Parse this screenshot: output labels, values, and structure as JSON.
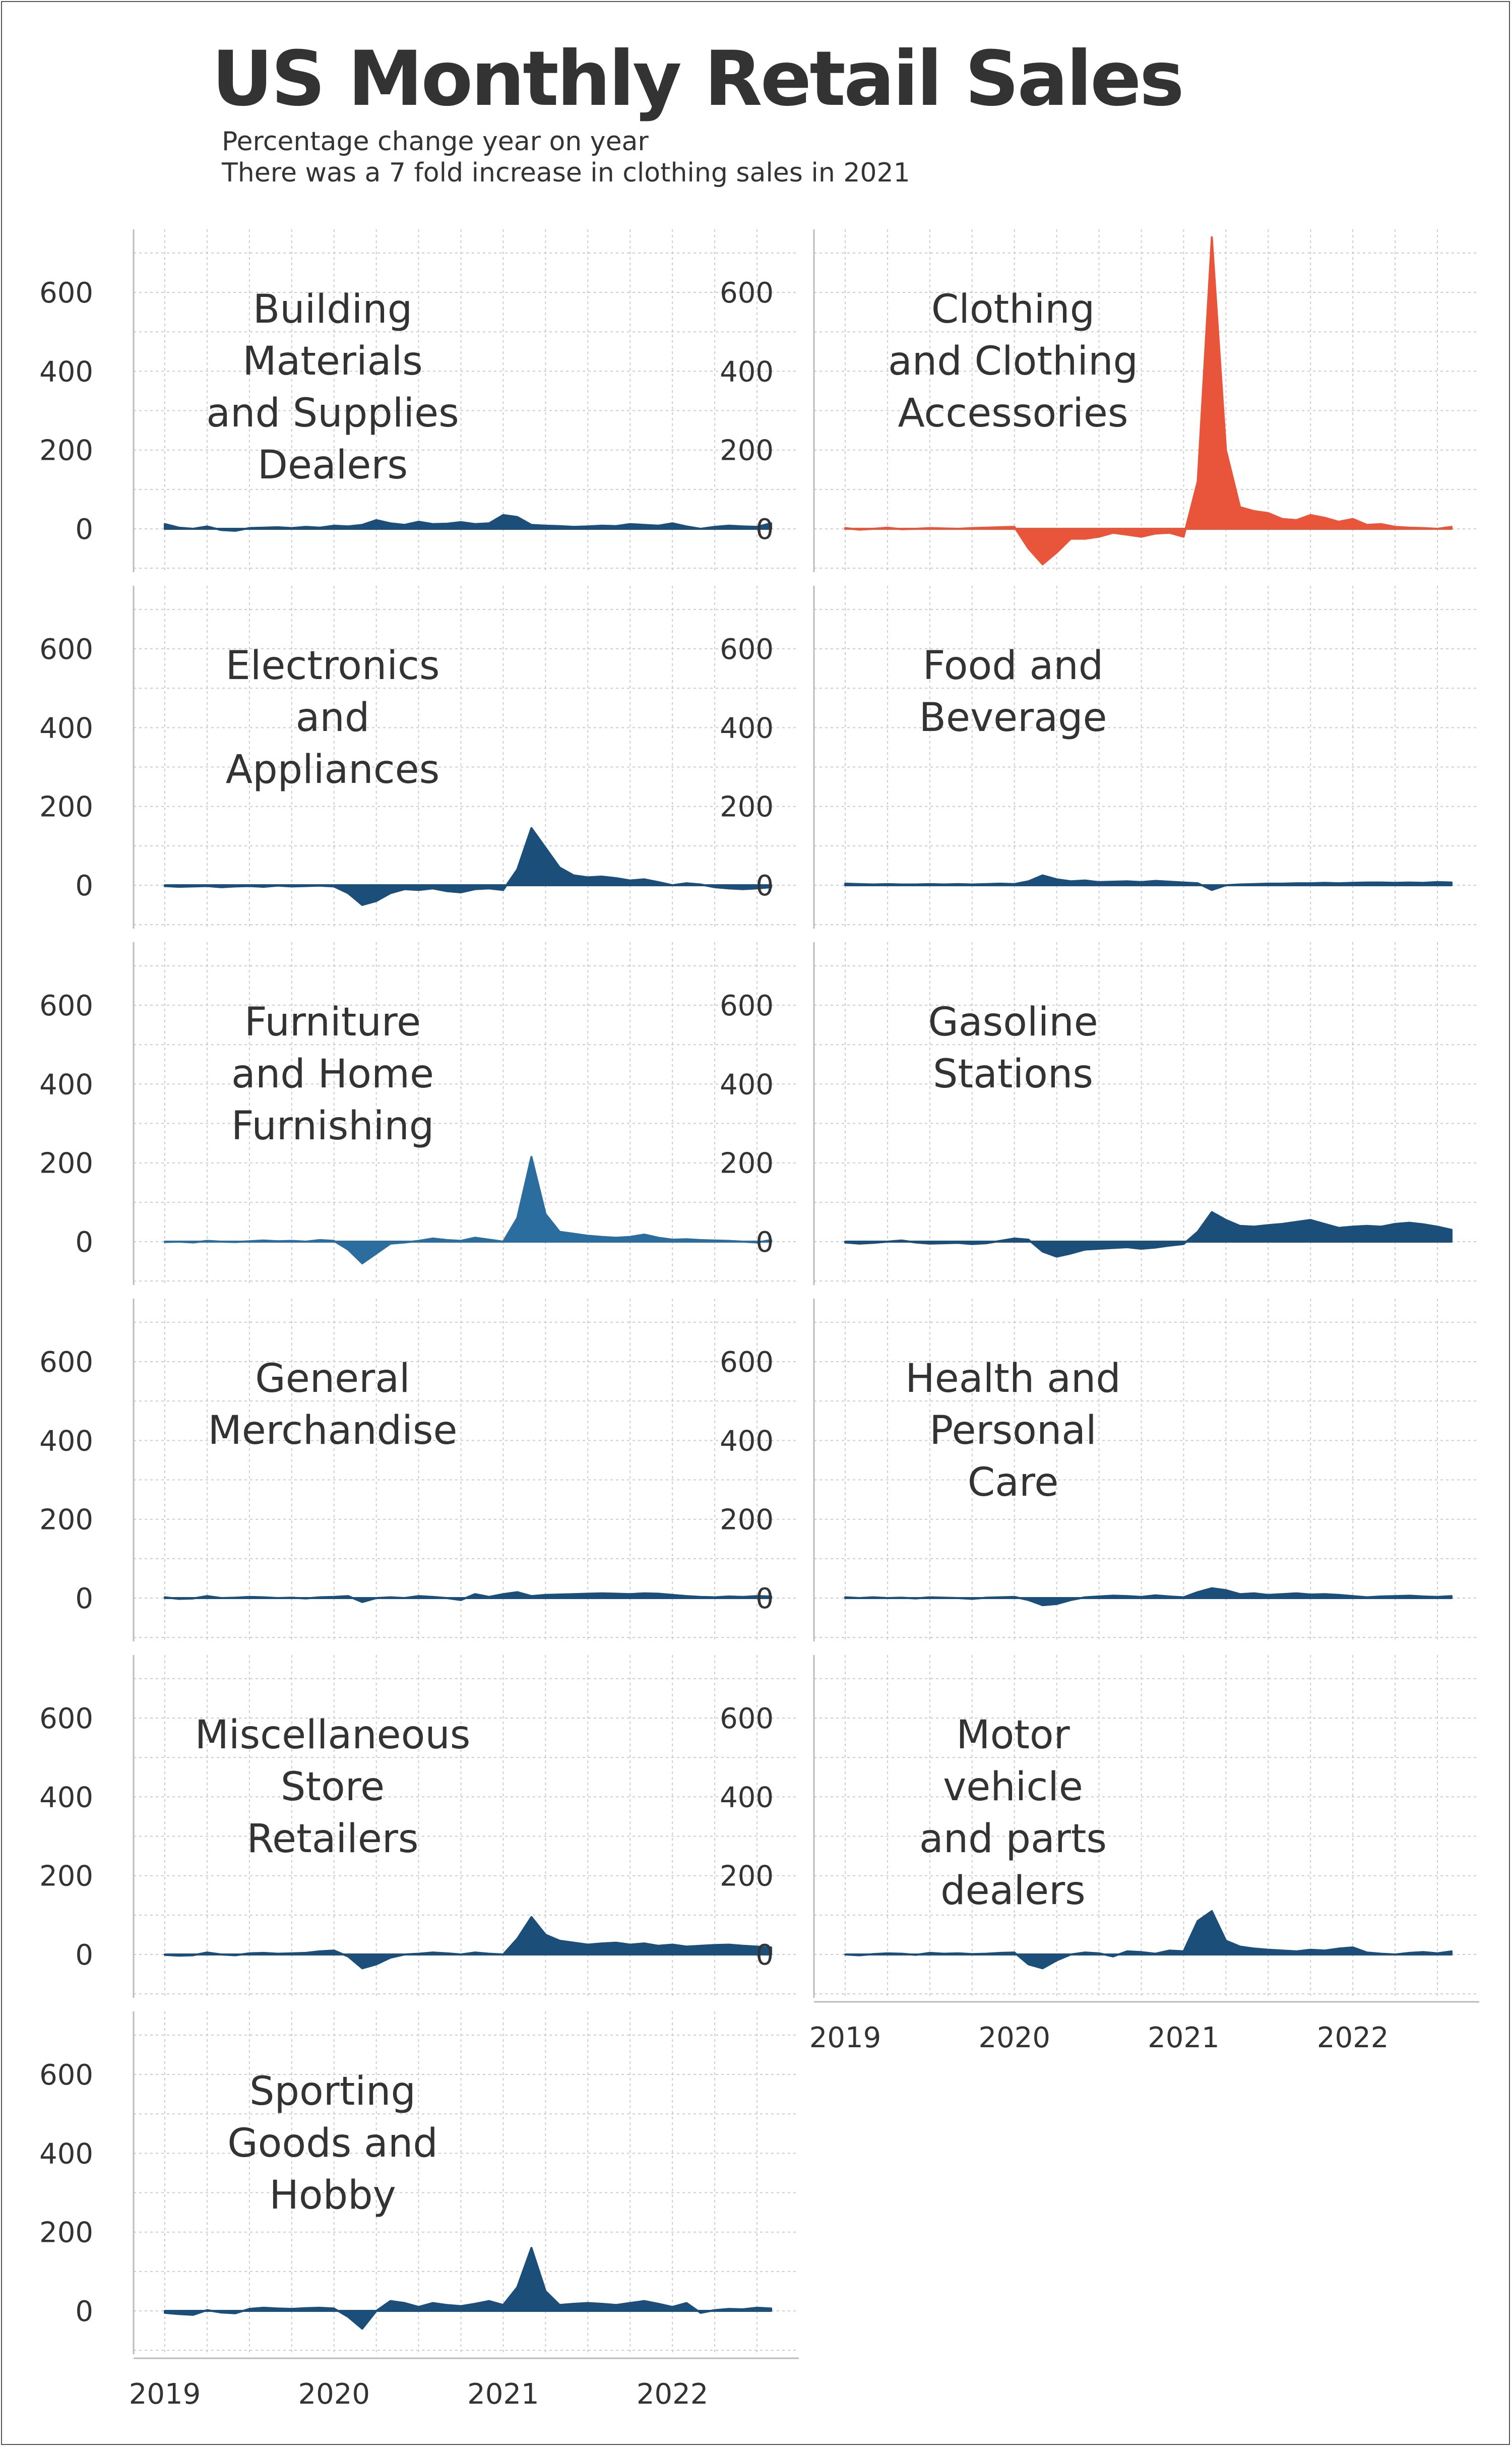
{
  "title": "US Monthly Retail Sales",
  "subtitle_lines": [
    "Percentage change year on year",
    "There was a 7 fold increase in clothing sales in 2021"
  ],
  "colors": {
    "default": "#1b4f7a",
    "highlight": "#e9553a",
    "furniture": "#2a6d9e",
    "text": "#333333",
    "grid": "#cccccc"
  },
  "chart_data": {
    "type": "area",
    "x_start": "2019-01",
    "x_end": "2022-08",
    "frequency": "monthly",
    "x_ticks": [
      "2019",
      "2020",
      "2021",
      "2022"
    ],
    "y_ticks": [
      "0",
      "200",
      "400",
      "600"
    ],
    "ylim": [
      -110,
      760
    ],
    "grid": true,
    "highlight_series": "Clothing and Clothing Accessories",
    "series": [
      {
        "name": "Building Materials and Supplies Dealers",
        "label_lines": [
          "Building",
          "Materials",
          "and Supplies",
          "Dealers"
        ],
        "values": [
          12,
          3,
          0,
          6,
          -3,
          -5,
          2,
          3,
          4,
          2,
          5,
          3,
          8,
          6,
          10,
          22,
          14,
          10,
          18,
          12,
          13,
          17,
          12,
          14,
          35,
          30,
          10,
          8,
          7,
          5,
          6,
          8,
          7,
          12,
          10,
          8,
          14,
          6,
          0,
          5,
          8,
          6,
          5,
          14
        ]
      },
      {
        "name": "Clothing and Clothing Accessories",
        "label_lines": [
          "Clothing",
          "and Clothing",
          "Accessories"
        ],
        "values": [
          2,
          -2,
          0,
          3,
          -1,
          0,
          2,
          1,
          0,
          2,
          3,
          4,
          5,
          -50,
          -90,
          -60,
          -25,
          -25,
          -20,
          -10,
          -15,
          -20,
          -12,
          -10,
          -20,
          120,
          740,
          200,
          55,
          45,
          40,
          25,
          22,
          35,
          28,
          18,
          25,
          10,
          12,
          5,
          3,
          2,
          0,
          5
        ]
      },
      {
        "name": "Electronics and Appliances",
        "label_lines": [
          "Electronics",
          "and",
          "Appliances"
        ],
        "values": [
          -2,
          -4,
          -3,
          -2,
          -5,
          -3,
          -2,
          -4,
          -1,
          -3,
          -2,
          -1,
          -3,
          -20,
          -50,
          -40,
          -20,
          -10,
          -12,
          -8,
          -15,
          -18,
          -10,
          -8,
          -12,
          40,
          145,
          95,
          45,
          25,
          20,
          22,
          18,
          12,
          15,
          8,
          0,
          5,
          2,
          -5,
          -8,
          -10,
          -8,
          -5
        ]
      },
      {
        "name": "Food and Beverage",
        "label_lines": [
          "Food and",
          "Beverage"
        ],
        "values": [
          4,
          3,
          2,
          3,
          2,
          2,
          3,
          2,
          3,
          2,
          3,
          4,
          3,
          10,
          25,
          15,
          10,
          12,
          8,
          9,
          10,
          8,
          11,
          9,
          7,
          5,
          -12,
          0,
          2,
          3,
          4,
          4,
          5,
          5,
          6,
          5,
          6,
          7,
          7,
          6,
          7,
          6,
          8,
          7
        ]
      },
      {
        "name": "Furniture and Home Furnishing",
        "label_lines": [
          "Furniture",
          "and Home",
          "Furnishing"
        ],
        "values": [
          -1,
          0,
          -2,
          2,
          0,
          -1,
          1,
          3,
          1,
          2,
          0,
          4,
          2,
          -20,
          -55,
          -30,
          -5,
          -2,
          2,
          8,
          4,
          2,
          10,
          5,
          0,
          60,
          215,
          70,
          25,
          20,
          15,
          12,
          10,
          12,
          18,
          10,
          5,
          6,
          4,
          3,
          2,
          0,
          -2,
          4
        ]
      },
      {
        "name": "Gasoline Stations",
        "label_lines": [
          "Gasoline",
          "Stations"
        ],
        "values": [
          -2,
          -5,
          -3,
          0,
          3,
          -2,
          -5,
          -4,
          -3,
          -6,
          -4,
          2,
          8,
          5,
          -25,
          -38,
          -30,
          -20,
          -18,
          -16,
          -14,
          -18,
          -15,
          -10,
          -6,
          25,
          75,
          55,
          40,
          38,
          42,
          45,
          50,
          55,
          45,
          35,
          38,
          40,
          38,
          45,
          48,
          44,
          38,
          30
        ]
      },
      {
        "name": "General Merchandise",
        "label_lines": [
          "General",
          "Merchandise"
        ],
        "values": [
          2,
          -2,
          -1,
          5,
          0,
          1,
          3,
          2,
          0,
          1,
          -1,
          2,
          3,
          5,
          -10,
          0,
          2,
          0,
          5,
          3,
          0,
          -5,
          10,
          3,
          10,
          15,
          5,
          8,
          9,
          10,
          11,
          12,
          11,
          10,
          12,
          11,
          8,
          5,
          3,
          2,
          4,
          3,
          5,
          4
        ]
      },
      {
        "name": "Health and Personal Care",
        "label_lines": [
          "Health and",
          "Personal",
          "Care"
        ],
        "values": [
          2,
          0,
          2,
          0,
          1,
          -1,
          2,
          1,
          0,
          -2,
          1,
          2,
          3,
          -5,
          -18,
          -15,
          -5,
          2,
          4,
          6,
          5,
          3,
          7,
          4,
          2,
          15,
          25,
          20,
          10,
          12,
          8,
          10,
          12,
          9,
          10,
          8,
          5,
          2,
          4,
          5,
          6,
          4,
          3,
          5
        ]
      },
      {
        "name": "Miscellaneous Store Retailers",
        "label_lines": [
          "Miscellaneous",
          "Store",
          "Retailers"
        ],
        "values": [
          -1,
          -3,
          -2,
          5,
          0,
          -2,
          3,
          4,
          2,
          3,
          4,
          8,
          10,
          -5,
          -35,
          -25,
          -8,
          0,
          2,
          5,
          3,
          0,
          5,
          2,
          0,
          40,
          95,
          50,
          35,
          30,
          25,
          28,
          30,
          25,
          28,
          22,
          25,
          20,
          22,
          24,
          25,
          22,
          20,
          18
        ]
      },
      {
        "name": "Motor vehicle and parts dealers",
        "label_lines": [
          "Motor",
          "vehicle",
          "and parts",
          "dealers"
        ],
        "values": [
          0,
          -2,
          1,
          3,
          2,
          -1,
          4,
          2,
          3,
          1,
          2,
          4,
          5,
          -25,
          -35,
          -15,
          0,
          5,
          3,
          -5,
          8,
          6,
          2,
          10,
          8,
          85,
          110,
          35,
          20,
          15,
          12,
          10,
          8,
          12,
          10,
          15,
          18,
          5,
          2,
          0,
          4,
          6,
          3,
          8
        ]
      },
      {
        "name": "Sporting Goods and Hobby",
        "label_lines": [
          "Sporting",
          "Goods and",
          "Hobby"
        ],
        "values": [
          -5,
          -8,
          -10,
          2,
          -4,
          -6,
          5,
          8,
          6,
          5,
          7,
          8,
          6,
          -15,
          -45,
          0,
          25,
          20,
          10,
          20,
          15,
          12,
          18,
          25,
          15,
          60,
          160,
          50,
          15,
          18,
          20,
          18,
          15,
          20,
          25,
          18,
          10,
          20,
          -5,
          2,
          5,
          4,
          8,
          6
        ]
      }
    ]
  }
}
